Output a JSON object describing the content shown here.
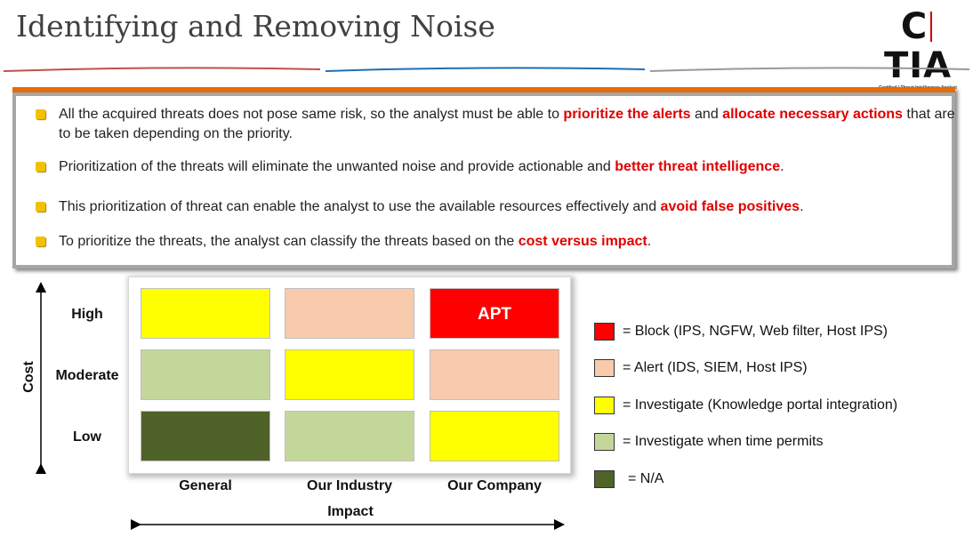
{
  "header": {
    "title": "Identifying and Removing Noise",
    "logo": {
      "left": "C",
      "right": "TIA",
      "sub_left": "Certified",
      "sub_right": "Threat Intelligence Analyst"
    }
  },
  "bullets": [
    [
      {
        "text": "All the acquired threats does not pose same risk, so the analyst must be able to "
      },
      {
        "text": "prioritize the alerts",
        "strong": true
      },
      {
        "text": " and "
      },
      {
        "text": "allocate necessary actions",
        "strong": true
      },
      {
        "text": " that are to be taken depending on the priority."
      }
    ],
    [
      {
        "text": "Prioritization of the threats will eliminate the unwanted noise and provide actionable and "
      },
      {
        "text": "better threat intelligence",
        "strong": true
      },
      {
        "text": "."
      }
    ],
    [
      {
        "text": "This prioritization of threat can enable the analyst to use the available resources effectively and "
      },
      {
        "text": "avoid false positives",
        "strong": true
      },
      {
        "text": "."
      }
    ],
    [
      {
        "text": "To prioritize the threats, the analyst can classify the threats based on the "
      },
      {
        "text": "cost versus impact",
        "strong": true
      },
      {
        "text": "."
      }
    ]
  ],
  "matrix": {
    "y_label": "Cost",
    "x_label": "Impact",
    "rows": [
      "High",
      "Moderate",
      "Low"
    ],
    "columns": [
      "General",
      "Our Industry",
      "Our Company"
    ],
    "cells": [
      [
        {
          "color": "#ffff00"
        },
        {
          "color": "#f8cbad"
        },
        {
          "color": "#ff0000",
          "label": "APT"
        }
      ],
      [
        {
          "color": "#c4d79b"
        },
        {
          "color": "#ffff00"
        },
        {
          "color": "#f8cbad"
        }
      ],
      [
        {
          "color": "#4f6228"
        },
        {
          "color": "#c4d79b"
        },
        {
          "color": "#ffff00"
        }
      ]
    ]
  },
  "legend": [
    {
      "color": "#ff0000",
      "text": "= Block (IPS, NGFW, Web filter, Host IPS)"
    },
    {
      "color": "#f8cbad",
      "text": "= Alert (IDS, SIEM, Host IPS)"
    },
    {
      "color": "#ffff00",
      "text": "= Investigate (Knowledge portal integration)"
    },
    {
      "color": "#c4d79b",
      "text": "= Investigate when time permits"
    },
    {
      "color": "#4f6228",
      "text": "= N/A"
    }
  ]
}
